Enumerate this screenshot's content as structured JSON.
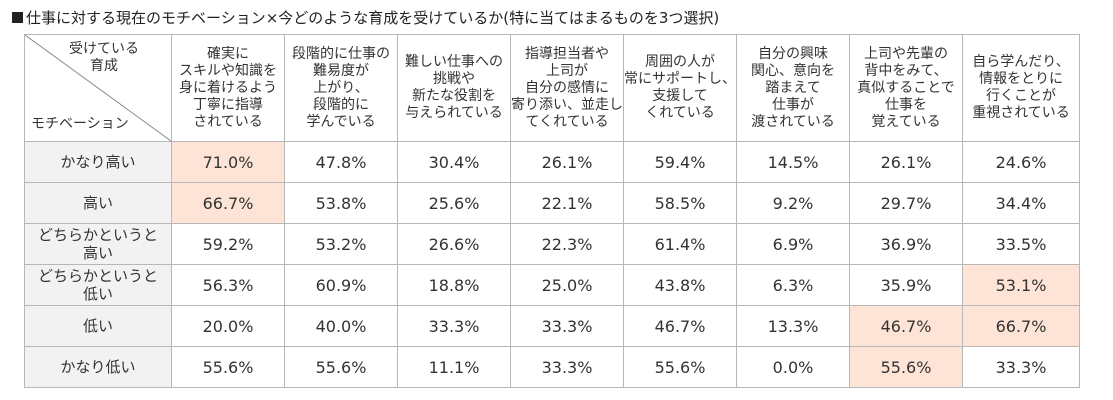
{
  "title": "仕事に対する現在のモチベーション×今どのような育成を受けているか(特に当てはまるものを3つ選択)",
  "corner": {
    "top": "受けている\n育成",
    "bottom": "モチベーション"
  },
  "columns": [
    "確実に\nスキルや知識を\n身に着けるよう\n丁寧に指導\nされている",
    "段階的に仕事の\n難易度が\n上がり、\n段階的に\n学んでいる",
    "難しい仕事への\n挑戦や\n新たな役割を\n与えられている",
    "指導担当者や\n上司が\n自分の感情に\n寄り添い、並走し\nてくれている",
    "周囲の人が\n常にサポートし、\n支援して\nくれている",
    "自分の興味\n関心、意向を\n踏まえて\n仕事が\n渡されている",
    "上司や先輩の\n背中をみて、\n真似することで\n仕事を\n覚えている",
    "自ら学んだり、\n情報をとりに\n行くことが\n重視されている"
  ],
  "rows": [
    {
      "label": "かなり高い",
      "values": [
        "71.0%",
        "47.8%",
        "30.4%",
        "26.1%",
        "59.4%",
        "14.5%",
        "26.1%",
        "24.6%"
      ],
      "highlight": [
        0
      ]
    },
    {
      "label": "高い",
      "values": [
        "66.7%",
        "53.8%",
        "25.6%",
        "22.1%",
        "58.5%",
        "9.2%",
        "29.7%",
        "34.4%"
      ],
      "highlight": [
        0
      ]
    },
    {
      "label": "どちらかというと\n高い",
      "values": [
        "59.2%",
        "53.2%",
        "26.6%",
        "22.3%",
        "61.4%",
        "6.9%",
        "36.9%",
        "33.5%"
      ],
      "highlight": []
    },
    {
      "label": "どちらかというと\n低い",
      "values": [
        "56.3%",
        "60.9%",
        "18.8%",
        "25.0%",
        "43.8%",
        "6.3%",
        "35.9%",
        "53.1%"
      ],
      "highlight": [
        7
      ]
    },
    {
      "label": "低い",
      "values": [
        "20.0%",
        "40.0%",
        "33.3%",
        "33.3%",
        "46.7%",
        "13.3%",
        "46.7%",
        "66.7%"
      ],
      "highlight": [
        6,
        7
      ]
    },
    {
      "label": "かなり低い",
      "values": [
        "55.6%",
        "55.6%",
        "11.1%",
        "33.3%",
        "55.6%",
        "0.0%",
        "55.6%",
        "33.3%"
      ],
      "highlight": [
        6
      ]
    }
  ],
  "colors": {
    "highlight": "#fde4d6",
    "row_header_bg": "#f2f2f2",
    "border": "#b7b7b7"
  }
}
